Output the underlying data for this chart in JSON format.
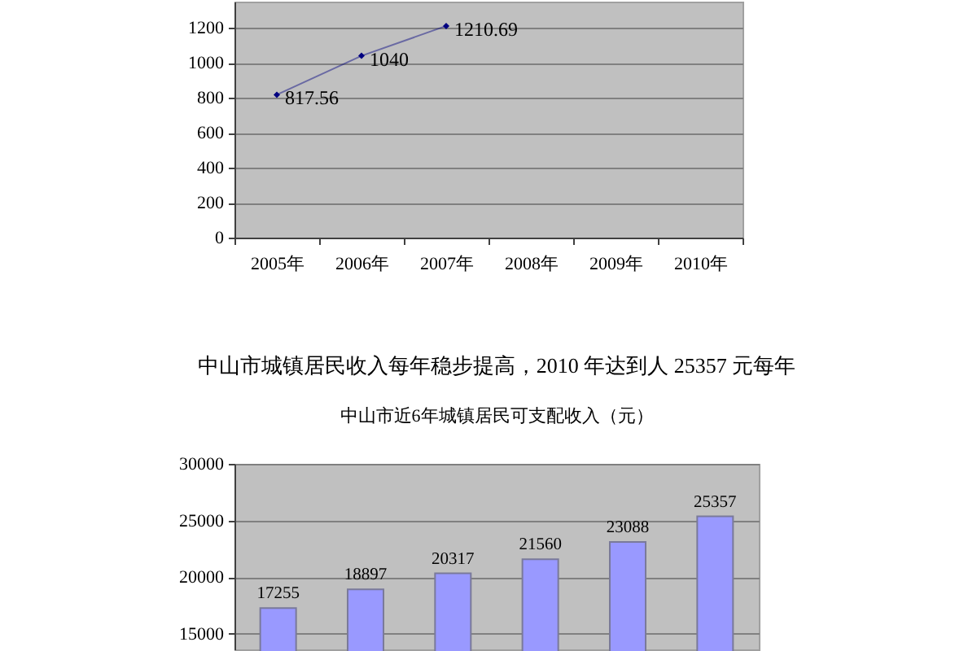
{
  "chart_data": [
    {
      "type": "line",
      "categories": [
        "2005年",
        "2006年",
        "2007年",
        "2008年",
        "2009年",
        "2010年"
      ],
      "series": [
        {
          "color": "#000080",
          "values": [
            817.56,
            1040,
            1210.69,
            null,
            null,
            null
          ]
        }
      ],
      "ylim": [
        0,
        1350
      ],
      "yticks": [
        0,
        200,
        400,
        600,
        800,
        1000,
        1200
      ],
      "grid": "y",
      "marker": "diamond",
      "line_style": "solid",
      "data_labels": true
    },
    {
      "type": "bar",
      "title": "中山市近6年城镇居民可支配收入（元）",
      "annotations": [
        "中山市城镇居民收入每年稳步提高，2010 年达到人 25357 元每年"
      ],
      "categories": [
        null,
        null,
        null,
        null,
        null,
        null
      ],
      "values": [
        17255,
        18897,
        20317,
        21560,
        23088,
        25357
      ],
      "color": "#9999ff",
      "ylim": [
        13600,
        30000
      ],
      "yticks": [
        15000,
        20000,
        25000,
        30000
      ],
      "grid": "y",
      "data_labels": true,
      "tick_labels": "y"
    }
  ]
}
